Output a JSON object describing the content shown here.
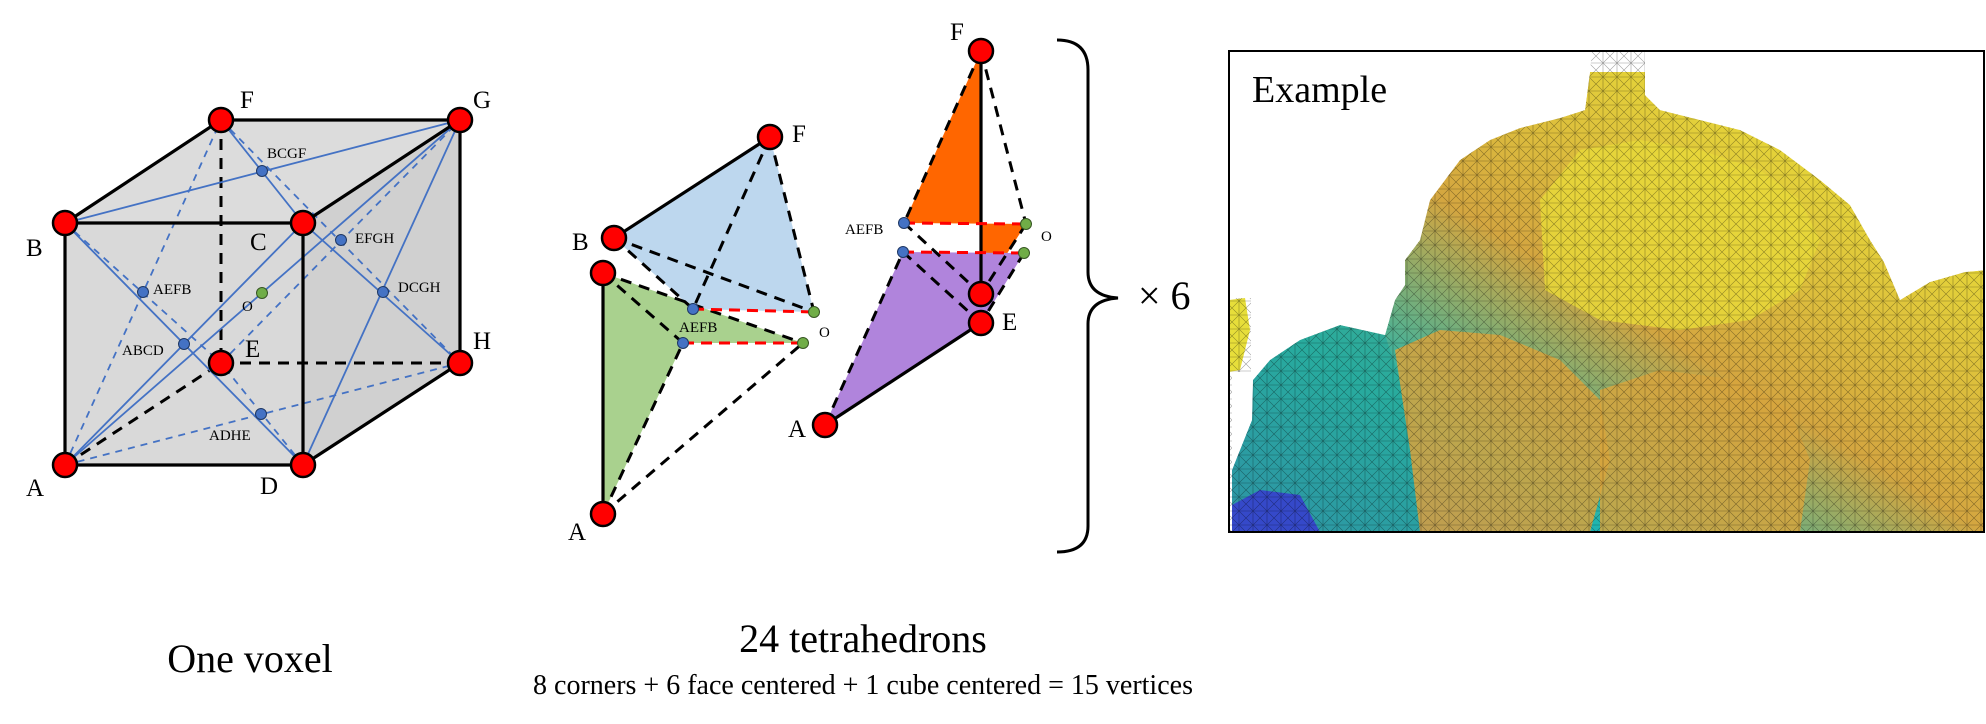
{
  "voxel": {
    "caption": "One voxel",
    "corners": {
      "A": "A",
      "B": "B",
      "C": "C",
      "D": "D",
      "E": "E",
      "F": "F",
      "G": "G",
      "H": "H"
    },
    "faces": {
      "AEFB": "AEFB",
      "ABCD": "ABCD",
      "BCGF": "BCGF",
      "EFGH": "EFGH",
      "DCGH": "DCGH",
      "ADHE": "ADHE"
    },
    "center": "O"
  },
  "tetra": {
    "caption": "24 tetrahedrons",
    "subcaption": "8 corners + 6 face centered + 1 cube centered = 15 vertices",
    "left": {
      "F": "F",
      "B": "B",
      "A": "A",
      "face": "AEFB",
      "center": "O"
    },
    "right": {
      "F": "F",
      "E": "E",
      "A": "A",
      "face": "AEFB",
      "center": "O"
    },
    "multiplier": "× 6"
  },
  "example": {
    "title": "Example"
  },
  "colors": {
    "corner_fill": "#ff0000",
    "face_dot": "#4472c4",
    "center_dot": "#70ad47",
    "cube_face": "#d9d9d9",
    "blue_line": "#4472c4",
    "red_dash": "#ff0000",
    "tet_blue": "#bdd7ee",
    "tet_green": "#a9d18e",
    "tet_orange": "#ff6600",
    "tet_purple": "#b084dc"
  }
}
